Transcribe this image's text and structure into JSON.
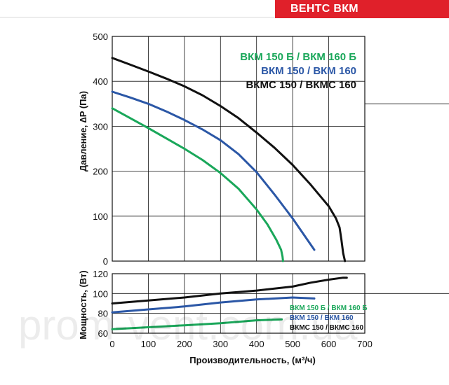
{
  "header": {
    "badge": "ВЕНТС ВКМ"
  },
  "watermark": "prom-vent.com.ua",
  "colors": {
    "green": "#1aa75a",
    "blue": "#2b57a6",
    "black": "#111111",
    "brand": "#e0202a"
  },
  "chart_data": [
    {
      "type": "line",
      "ylabel": "Давление, ∆P (Па)",
      "xlim": [
        0,
        700
      ],
      "ylim": [
        0,
        500
      ],
      "yticks": [
        0,
        100,
        200,
        300,
        400,
        500
      ],
      "grid": true,
      "legend_position": "top-right",
      "series": [
        {
          "name": "ВКМ 150 Б / ВКМ 160 Б",
          "color": "#1aa75a",
          "x": [
            0,
            50,
            100,
            150,
            200,
            250,
            300,
            350,
            400,
            430,
            455,
            468,
            472,
            473,
            473
          ],
          "y": [
            340,
            318,
            296,
            273,
            250,
            225,
            196,
            161,
            115,
            82,
            47,
            25,
            10,
            2,
            0
          ]
        },
        {
          "name": "ВКМ 150 / ВКМ 160",
          "color": "#2b57a6",
          "x": [
            0,
            50,
            100,
            150,
            200,
            250,
            300,
            350,
            400,
            450,
            500,
            560
          ],
          "y": [
            377,
            364,
            350,
            333,
            314,
            293,
            269,
            238,
            198,
            148,
            95,
            25
          ]
        },
        {
          "name": "ВКМС 150 / ВКМС 160",
          "color": "#111111",
          "x": [
            0,
            50,
            100,
            150,
            200,
            250,
            300,
            350,
            400,
            450,
            500,
            550,
            600,
            620,
            630,
            635,
            640,
            645
          ],
          "y": [
            452,
            437,
            422,
            406,
            389,
            369,
            345,
            318,
            286,
            252,
            214,
            170,
            122,
            95,
            75,
            48,
            18,
            0
          ]
        }
      ]
    },
    {
      "type": "line",
      "xlabel": "Производительность, (м³/ч)",
      "ylabel": "Мощность, (Вт)",
      "xlim": [
        0,
        700
      ],
      "ylim": [
        60,
        120
      ],
      "xticks": [
        0,
        100,
        200,
        300,
        400,
        500,
        600,
        700
      ],
      "yticks": [
        60,
        80,
        100,
        120
      ],
      "grid": true,
      "legend_position": "bottom-right",
      "series": [
        {
          "name": "ВКМ 150 Б / ВКМ 160 Б",
          "color": "#1aa75a",
          "x": [
            0,
            100,
            200,
            300,
            400,
            470
          ],
          "y": [
            64,
            66,
            68,
            70,
            73,
            74
          ]
        },
        {
          "name": "ВКМ 150 / ВКМ 160",
          "color": "#2b57a6",
          "x": [
            0,
            100,
            200,
            300,
            400,
            500,
            560
          ],
          "y": [
            81,
            84,
            87,
            91,
            94,
            96,
            95
          ]
        },
        {
          "name": "ВКМС 150 / ВКМС 160",
          "color": "#111111",
          "x": [
            0,
            100,
            200,
            300,
            400,
            500,
            550,
            600,
            640,
            650
          ],
          "y": [
            90,
            93,
            96,
            100,
            103,
            107,
            111,
            114,
            116,
            116
          ]
        }
      ]
    }
  ]
}
